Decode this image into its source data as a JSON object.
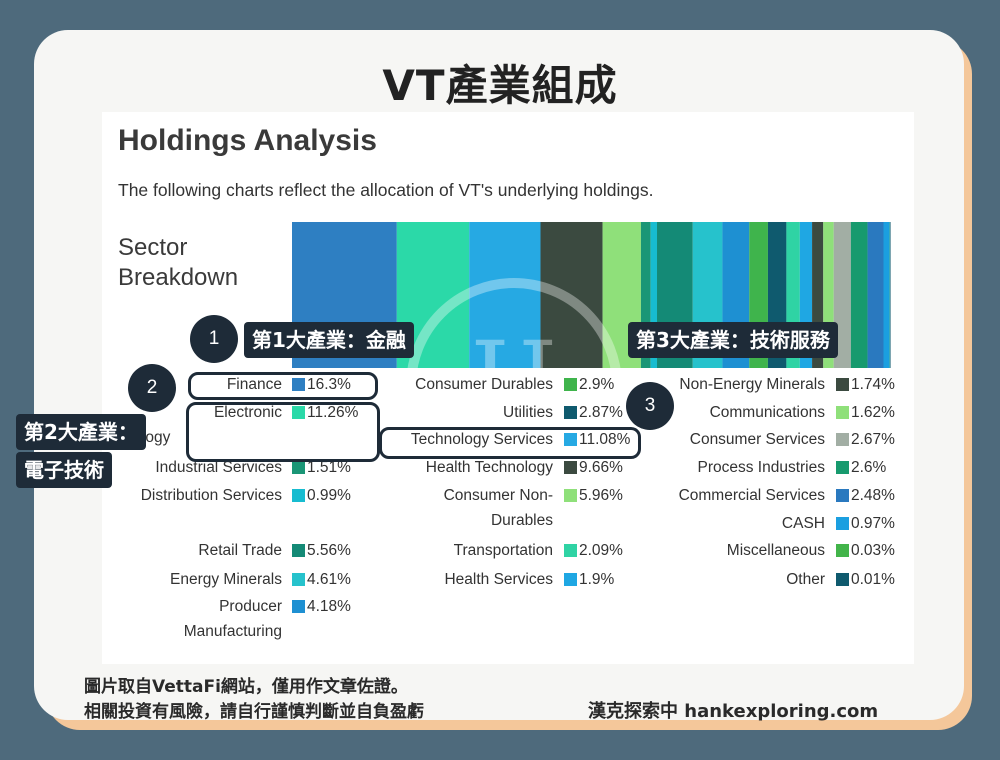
{
  "title": "VT產業組成",
  "heading": "Holdings Analysis",
  "subtitle": "The following charts reflect the allocation of VT's underlying holdings.",
  "section_label_line1": "Sector",
  "section_label_line2": "Breakdown",
  "chart_data": {
    "type": "bar",
    "title": "Sector Breakdown",
    "orientation": "stacked-horizontal",
    "unit": "%",
    "categories": [
      "Finance",
      "Electronic Technology",
      "Industrial Services",
      "Distribution Services",
      "Retail Trade",
      "Energy Minerals",
      "Producer Manufacturing",
      "Consumer Durables",
      "Utilities",
      "Technology Services",
      "Health Technology",
      "Consumer Non-Durables",
      "Transportation",
      "Health Services",
      "Non-Energy Minerals",
      "Communications",
      "Consumer Services",
      "Process Industries",
      "Commercial Services",
      "CASH",
      "Miscellaneous",
      "Other"
    ],
    "values": [
      16.3,
      11.26,
      1.51,
      0.99,
      5.56,
      4.61,
      4.18,
      2.9,
      2.87,
      11.08,
      9.66,
      5.96,
      2.09,
      1.9,
      1.74,
      1.62,
      2.67,
      2.6,
      2.48,
      0.97,
      0.03,
      0.01
    ],
    "labels": [
      "16.3%",
      "11.26%",
      "1.51%",
      "0.99%",
      "5.56%",
      "4.61%",
      "4.18%",
      "2.9%",
      "2.87%",
      "11.08%",
      "9.66%",
      "5.96%",
      "2.09%",
      "1.9%",
      "1.74%",
      "1.62%",
      "2.67%",
      "2.6%",
      "2.48%",
      "0.97%",
      "0.03%",
      "0.01%"
    ],
    "colors": [
      "#2e7fc2",
      "#2bd9a8",
      "#1a9676",
      "#17bcd0",
      "#148a76",
      "#26c2cc",
      "#1e90d2",
      "#3fb44c",
      "#0f5a6e",
      "#26a9e3",
      "#3b4a40",
      "#8fe07a",
      "#2fd3a4",
      "#1fa7e3",
      "#3b4a40",
      "#8fe07a",
      "#a2aea4",
      "#179a6e",
      "#2a79bf",
      "#1b9fe0",
      "#42b44a",
      "#0f5a6e"
    ],
    "bar_order": [
      0,
      1,
      9,
      10,
      11,
      2,
      3,
      4,
      5,
      6,
      7,
      8,
      12,
      13,
      14,
      15,
      16,
      17,
      18,
      19,
      20,
      21
    ],
    "legend_columns": [
      [
        0,
        1,
        2,
        3,
        4,
        5,
        6
      ],
      [
        7,
        8,
        9,
        10,
        11,
        12,
        13
      ],
      [
        14,
        15,
        16,
        17,
        18,
        19,
        20,
        21
      ]
    ]
  },
  "legend_display": [
    "Finance",
    "Electronic|Technology",
    "Industrial Services",
    "Distribution Services",
    "Retail Trade",
    "Energy Minerals",
    "Producer|Manufacturing",
    "Consumer Durables",
    "Utilities",
    "Technology Services",
    "Health Technology",
    "Consumer Non-|Durables",
    "Transportation",
    "Health Services",
    "Non-Energy Minerals",
    "Communications",
    "Consumer Services",
    "Process Industries",
    "Commercial Services",
    "CASH",
    "Miscellaneous",
    "Other"
  ],
  "callouts": {
    "n1": "1",
    "n2": "2",
    "n3": "3",
    "tag1": "第1大產業：金融",
    "tag2_line1": "第2大產業：",
    "tag2_line2": "電子技術",
    "tag3": "第3大產業：技術服務"
  },
  "watermark": "H",
  "footer": {
    "note_line1": "圖片取自VettaFi網站，僅用作文章佐證。",
    "note_line2": "相關投資有風險，請自行謹慎判斷並自負盈虧",
    "brand": "漢克探索中 hankexploring.com"
  }
}
